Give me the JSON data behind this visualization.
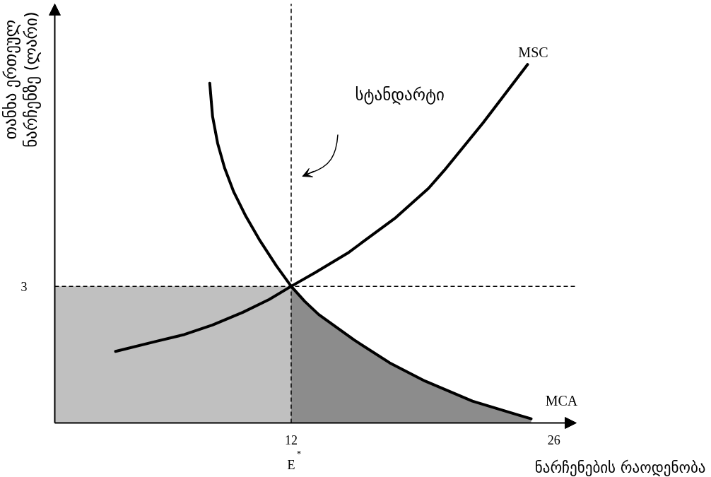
{
  "chart_data": {
    "type": "line",
    "xlabel": "ნარჩენების რაოდენობა",
    "ylabel": "თანხა ერთეულ\nნარჩენზე (ლარი)",
    "xlim": [
      -0.6,
      27.2
    ],
    "xticks": [
      12,
      26
    ],
    "ylim": [
      0,
      9.2
    ],
    "yticks": [
      3
    ],
    "grid": false,
    "legend": false,
    "series": [
      {
        "type": "area",
        "color": "#c0c0c0",
        "x": [
          -0.6,
          12
        ],
        "values": [
          3,
          3
        ]
      },
      {
        "type": "area",
        "color": "#8c8c8c",
        "x": [
          12,
          12.72,
          13.47,
          15.36,
          17.25,
          19.13,
          21.66,
          24.15,
          24.79
        ],
        "values": [
          3,
          2.67,
          2.38,
          1.82,
          1.32,
          0.92,
          0.48,
          0.17,
          0.09
        ]
      },
      {
        "name": "MCA",
        "color": "#000000",
        "x": [
          7.66,
          7.81,
          8.08,
          8.45,
          8.94,
          9.58,
          10.34,
          11.21,
          12,
          12.72,
          13.47,
          15.36,
          17.25,
          19.13,
          21.66,
          24.15,
          24.79
        ],
        "values": [
          7.46,
          6.73,
          6.14,
          5.6,
          5.07,
          4.54,
          4.0,
          3.45,
          3,
          2.67,
          2.38,
          1.82,
          1.32,
          0.92,
          0.48,
          0.17,
          0.09
        ]
      },
      {
        "name": "MSC",
        "color": "#000000",
        "x": [
          2.64,
          4.79,
          6.3,
          7.81,
          9.43,
          10.83,
          12,
          13.28,
          15.02,
          17.58,
          19.32,
          20.15,
          22.23,
          24.6
        ],
        "values": [
          1.57,
          1.79,
          1.94,
          2.15,
          2.43,
          2.71,
          3,
          3.3,
          3.73,
          4.51,
          5.15,
          5.54,
          6.59,
          7.87
        ]
      }
    ],
    "ref_lines": [
      {
        "axis": "y",
        "value": 3,
        "line_style": "dashed",
        "color": "#000000"
      },
      {
        "axis": "x",
        "value": 12,
        "line_style": "dashed",
        "color": "#000000"
      }
    ],
    "annotations": [
      "სტანდარტი",
      {
        "text": "E$^{*}$",
        "x": 12,
        "y": 0
      }
    ]
  }
}
